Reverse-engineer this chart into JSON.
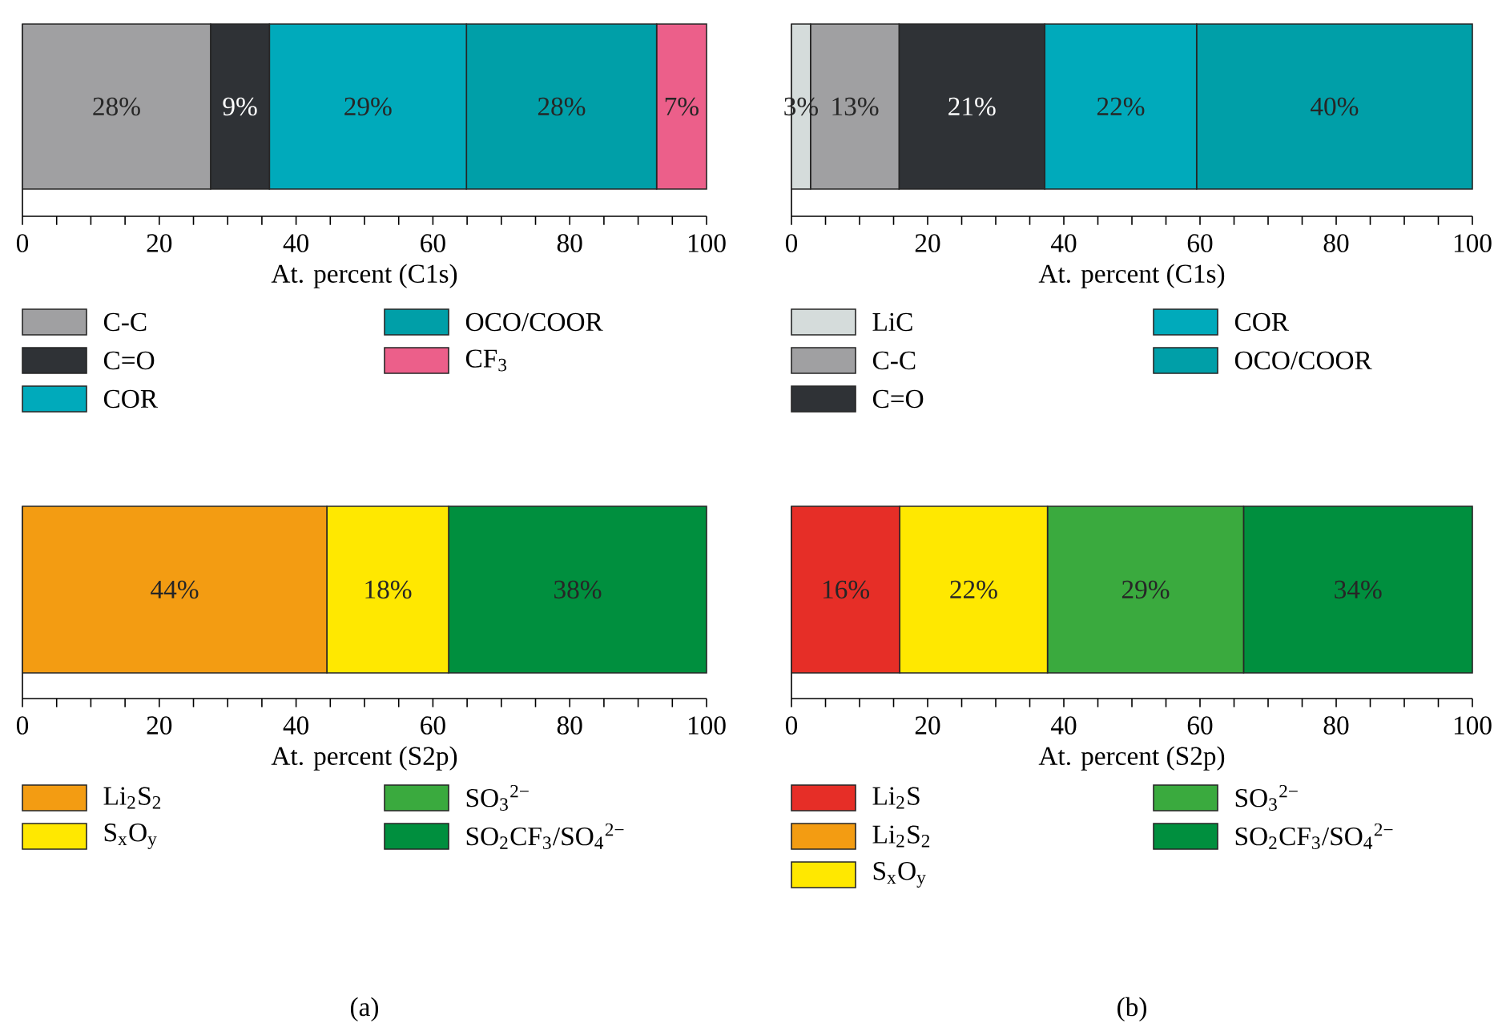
{
  "chart_data": [
    {
      "type": "bar",
      "orientation": "horizontal",
      "stacked": true,
      "categories": [
        null
      ],
      "xlabel": "At. percent (C1s)",
      "xlim": [
        0,
        100
      ],
      "xticks": [
        0,
        20,
        40,
        60,
        80,
        100
      ],
      "tick_labels": "x",
      "legend": "bottom",
      "series": [
        {
          "name": "C-C",
          "color": "#a0a0a2",
          "values": [
            27.5
          ],
          "value_labels": [
            "28%"
          ]
        },
        {
          "name": "C=O",
          "color": "#2f3236",
          "values": [
            8.6
          ],
          "value_labels": [
            "9%"
          ]
        },
        {
          "name": "COR",
          "color": "#00aabb",
          "values": [
            28.8
          ],
          "value_labels": [
            "29%"
          ]
        },
        {
          "name": "OCO/COOR",
          "color": "#009fa8",
          "values": [
            27.8
          ],
          "value_labels": [
            "28%"
          ]
        },
        {
          "name": "CF$_{3}$",
          "color": "#ec5f8a",
          "values": [
            7.3
          ],
          "value_labels": [
            "7%"
          ]
        }
      ]
    },
    {
      "type": "bar",
      "orientation": "horizontal",
      "stacked": true,
      "categories": [
        null
      ],
      "xlabel": "At. percent (C1s)",
      "xlim": [
        0,
        100
      ],
      "xticks": [
        0,
        20,
        40,
        60,
        80,
        100
      ],
      "tick_labels": "x",
      "legend": "bottom",
      "series": [
        {
          "name": "LiC",
          "color": "#d5dcdb",
          "values": [
            2.8
          ],
          "value_labels": [
            "3%"
          ]
        },
        {
          "name": "C-C",
          "color": "#a0a0a2",
          "values": [
            13.0
          ],
          "value_labels": [
            "13%"
          ]
        },
        {
          "name": "C=O",
          "color": "#2f3236",
          "values": [
            21.4
          ],
          "value_labels": [
            "21%"
          ]
        },
        {
          "name": "COR",
          "color": "#00aabb",
          "values": [
            22.3
          ],
          "value_labels": [
            "22%"
          ]
        },
        {
          "name": "OCO/COOR",
          "color": "#009fa8",
          "values": [
            40.5
          ],
          "value_labels": [
            "40%"
          ]
        }
      ]
    },
    {
      "type": "bar",
      "orientation": "horizontal",
      "stacked": true,
      "categories": [
        null
      ],
      "xlabel": "At. percent (S2p)",
      "xlim": [
        0,
        100
      ],
      "xticks": [
        0,
        20,
        40,
        60,
        80,
        100
      ],
      "tick_labels": "x",
      "legend": "bottom",
      "annotations": [
        "(a)"
      ],
      "series": [
        {
          "name": "Li$_{2}$S$_{2}$",
          "color": "#f39c12",
          "values": [
            44.5
          ],
          "value_labels": [
            "44%"
          ]
        },
        {
          "name": "S$_{x}$O$_{y}$",
          "color": "#ffe800",
          "values": [
            17.8
          ],
          "value_labels": [
            "18%"
          ]
        },
        {
          "name": "SO$_{3}$$^{2−}$",
          "color": "#3aaa3e",
          "values": [
            0
          ],
          "value_labels": [
            null
          ]
        },
        {
          "name": "SO$_{2}$CF$_{3}$/SO$_{4}$$^{2−}$",
          "color": "#008f3e",
          "values": [
            37.7
          ],
          "value_labels": [
            "38%"
          ]
        }
      ]
    },
    {
      "type": "bar",
      "orientation": "horizontal",
      "stacked": true,
      "categories": [
        null
      ],
      "xlabel": "At. percent (S2p)",
      "xlim": [
        0,
        100
      ],
      "xticks": [
        0,
        20,
        40,
        60,
        80,
        100
      ],
      "tick_labels": "x",
      "legend": "bottom",
      "annotations": [
        "(b)"
      ],
      "series": [
        {
          "name": "Li$_{2}$S",
          "color": "#e62e27",
          "values": [
            15.9
          ],
          "value_labels": [
            "16%"
          ]
        },
        {
          "name": "Li$_{2}$S$_{2}$",
          "color": "#f39c12",
          "values": [
            0
          ],
          "value_labels": [
            null
          ]
        },
        {
          "name": "S$_{x}$O$_{y}$",
          "color": "#ffe800",
          "values": [
            21.7
          ],
          "value_labels": [
            "22%"
          ]
        },
        {
          "name": "SO$_{3}$$^{2−}$",
          "color": "#3aaa3e",
          "values": [
            28.8
          ],
          "value_labels": [
            "29%"
          ]
        },
        {
          "name": "SO$_{2}$CF$_{3}$/SO$_{4}$$^{2−}$",
          "color": "#008f3e",
          "values": [
            33.6
          ],
          "value_labels": [
            "34%"
          ]
        }
      ]
    }
  ]
}
